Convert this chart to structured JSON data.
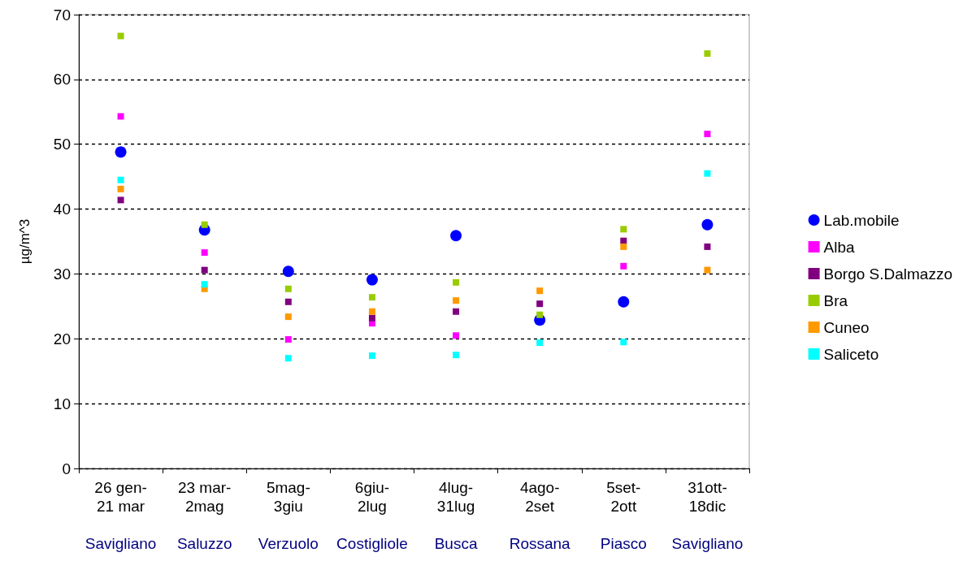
{
  "chart_data": {
    "type": "scatter",
    "ylabel": "µg/m^3",
    "categories": [
      "26 gen-\n21 mar\n\nSavigliano",
      "23 mar-\n2mag\n\nSaluzzo",
      "5mag-\n3giu\n\nVerzuolo",
      "6giu-\n2lug\n\nCostigliole",
      "4lug-\n31lug\n\nBusca",
      "4ago-\n2set\n\nRossana",
      "5set-\n2ott\n\nPiasco",
      "31ott-\n18dic\n\nSavigliano"
    ],
    "series": [
      {
        "name": "Lab.mobile",
        "color": "#0000ff",
        "marker": "circle",
        "values": [
          48.8,
          36.8,
          30.4,
          29.1,
          35.9,
          22.9,
          25.7,
          37.6
        ]
      },
      {
        "name": "Alba",
        "color": "#ff00ff",
        "values": [
          54.3,
          33.3,
          19.9,
          22.4,
          20.5,
          null,
          31.2,
          51.6
        ]
      },
      {
        "name": "Borgo S.Dalmazzo",
        "color": "#800080",
        "values": [
          41.4,
          30.6,
          25.7,
          23.2,
          24.2,
          25.4,
          35.1,
          34.2
        ]
      },
      {
        "name": "Bra",
        "color": "#99cc00",
        "values": [
          66.7,
          37.6,
          27.7,
          26.4,
          28.7,
          23.7,
          36.9,
          64.0
        ]
      },
      {
        "name": "Cuneo",
        "color": "#ff9900",
        "values": [
          43.1,
          27.7,
          23.4,
          24.2,
          25.9,
          27.4,
          34.2,
          30.6
        ]
      },
      {
        "name": "Saliceto",
        "color": "#00ffff",
        "values": [
          44.5,
          28.4,
          17.0,
          17.4,
          17.5,
          19.4,
          19.5,
          45.5
        ]
      }
    ],
    "ylim": [
      0,
      70
    ],
    "yticks": [
      0,
      10,
      20,
      30,
      40,
      50,
      60,
      70
    ],
    "grid": "y",
    "legend": "right",
    "marker": "square"
  }
}
